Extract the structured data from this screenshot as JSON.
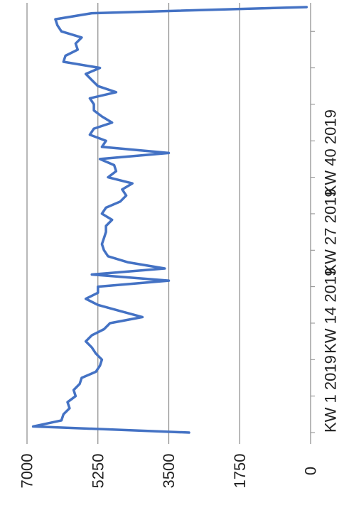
{
  "chart_data": {
    "type": "line",
    "orientation": "rotated-90-clockwise",
    "title": "",
    "xlabel": "",
    "ylabel": "",
    "ylim": [
      0,
      7000
    ],
    "yticks": [
      0,
      1750,
      3500,
      5250,
      7000
    ],
    "ytick_labels": [
      "0",
      "1750",
      "3500",
      "5250",
      "7000"
    ],
    "xtick_labels": [
      {
        "index": 0,
        "label": "KW 1 2019"
      },
      {
        "index": 13,
        "label": "KW 14 2019"
      },
      {
        "index": 26,
        "label": "KW 27 2019"
      },
      {
        "index": 39,
        "label": "KW 40 2019"
      }
    ],
    "grid": "major-y",
    "legend": "none",
    "colors": {
      "line": "#4472c4",
      "grid": "#888888",
      "axis": "#8a8a8a"
    },
    "series": [
      {
        "values": [
          3000,
          6850,
          6150,
          6100,
          5950,
          6000,
          5800,
          5850,
          5700,
          5650,
          5300,
          5200,
          5150,
          5300,
          5400,
          5550,
          5400,
          5100,
          4950,
          4150,
          4700,
          5250,
          5550,
          5250,
          5250,
          3500,
          5400,
          3600,
          4500,
          5000,
          5100,
          5150,
          5100,
          5050,
          5050,
          4900,
          5150,
          5050,
          4700,
          4550,
          4650,
          4400,
          5000,
          4800,
          4850,
          5200,
          3500,
          5150,
          5050,
          5450,
          5350,
          4900,
          5150,
          5350,
          5350,
          5450,
          4800,
          5250,
          5400,
          5550,
          5200,
          6100,
          6050,
          5750,
          5800,
          5650,
          6150,
          6250,
          6300,
          5400,
          100
        ]
      }
    ]
  }
}
